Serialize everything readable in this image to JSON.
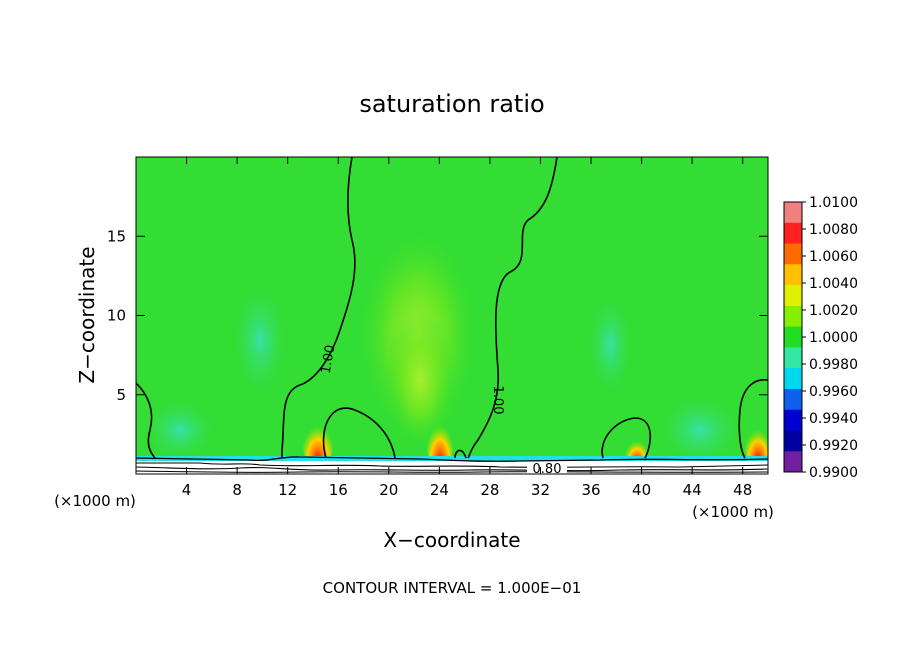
{
  "chart_data": {
    "type": "heatmap",
    "title": "saturation ratio",
    "xlabel": "X−coordinate",
    "ylabel": "Z−coordinate",
    "x_unit_left": "(×1000 m)",
    "x_unit_right": "(×1000 m)",
    "xlim": [
      0,
      50
    ],
    "ylim": [
      0,
      20
    ],
    "xticks": [
      4,
      8,
      12,
      16,
      20,
      24,
      28,
      32,
      36,
      40,
      44,
      48
    ],
    "xtick_labels": [
      "4",
      "8",
      "12",
      "16",
      "20",
      "24",
      "28",
      "32",
      "36",
      "40",
      "44",
      "48"
    ],
    "yticks": [
      5,
      10,
      15
    ],
    "ytick_labels": [
      "5",
      "10",
      "15"
    ],
    "footer": "CONTOUR INTERVAL = 1.000E−01",
    "contour_labels": [
      "1.00",
      "1.00",
      "0.80"
    ],
    "colorbar": {
      "labels": [
        "1.0100",
        "1.0080",
        "1.0060",
        "1.0040",
        "1.0020",
        "1.0000",
        "0.9980",
        "0.9960",
        "0.9940",
        "0.9920",
        "0.9900"
      ],
      "colors": [
        "#f08080",
        "#ff2020",
        "#ff6a00",
        "#ffc000",
        "#e0f000",
        "#88ee00",
        "#22dd22",
        "#33e8a0",
        "#00d8f0",
        "#1060f0",
        "#0000d0",
        "#0000a0",
        "#7020a0"
      ]
    },
    "background_value": 1.0,
    "field_color": "#33dd33",
    "plumes": [
      {
        "x": 14.5,
        "z": 0.7,
        "peak": 1.007
      },
      {
        "x": 24,
        "z": 0.7,
        "peak": 1.007
      },
      {
        "x": 40,
        "z": 0.7,
        "peak": 1.005
      },
      {
        "x": 49,
        "z": 0.7,
        "peak": 1.006
      }
    ]
  }
}
